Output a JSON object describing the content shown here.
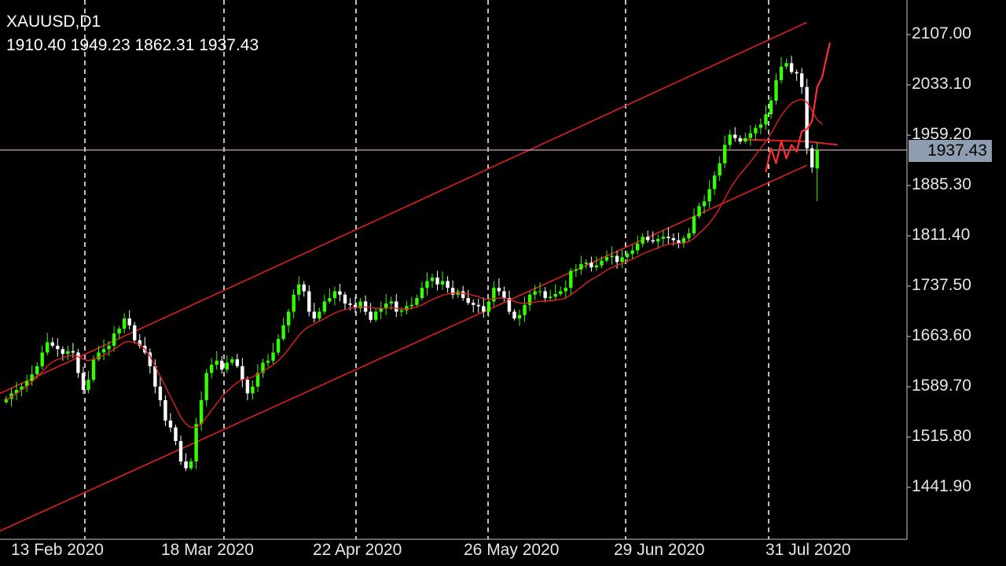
{
  "header": {
    "symbol": "XAUUSD,D1",
    "ohlc": "1910.40 1949.23 1862.31 1937.43"
  },
  "current_price_label": "1937.43",
  "colors": {
    "background": "#000000",
    "bull_candle": "#33ff00",
    "bear_candle": "#ffffff",
    "channel": "#e02020",
    "moving_average": "#e02020",
    "price_line": "#c8a8b0",
    "grid_vertical": "#ffffff",
    "axis": "#cccccc",
    "price_tag_bg": "#8f9db0",
    "forecast": "#ff3030"
  },
  "chart_data": {
    "type": "candlestick",
    "symbol": "XAUUSD",
    "timeframe": "D1",
    "y_ticks": [
      "2107.00",
      "2033.10",
      "1959.20",
      "1885.30",
      "1811.40",
      "1737.50",
      "1663.60",
      "1589.70",
      "1515.80",
      "1441.90"
    ],
    "x_ticks": [
      "13 Feb 2020",
      "18 Mar 2020",
      "22 Apr 2020",
      "26 May 2020",
      "29 Jun 2020",
      "31 Jul 2020"
    ],
    "ylim": [
      1400,
      2150
    ],
    "current_price": 1937.43,
    "last_bar": {
      "open": 1910.4,
      "high": 1949.23,
      "low": 1862.31,
      "close": 1937.43
    },
    "closes": [
      1572,
      1580,
      1585,
      1590,
      1598,
      1608,
      1620,
      1640,
      1655,
      1650,
      1645,
      1638,
      1642,
      1640,
      1610,
      1585,
      1600,
      1630,
      1640,
      1645,
      1650,
      1668,
      1675,
      1690,
      1680,
      1658,
      1650,
      1640,
      1620,
      1590,
      1570,
      1540,
      1530,
      1510,
      1480,
      1470,
      1480,
      1535,
      1570,
      1610,
      1622,
      1628,
      1615,
      1625,
      1630,
      1620,
      1600,
      1580,
      1590,
      1610,
      1625,
      1628,
      1640,
      1660,
      1680,
      1700,
      1725,
      1740,
      1730,
      1700,
      1690,
      1700,
      1715,
      1720,
      1730,
      1725,
      1712,
      1710,
      1705,
      1715,
      1700,
      1688,
      1700,
      1705,
      1712,
      1715,
      1700,
      1702,
      1708,
      1710,
      1720,
      1735,
      1745,
      1750,
      1740,
      1745,
      1735,
      1725,
      1730,
      1720,
      1713,
      1710,
      1708,
      1700,
      1715,
      1735,
      1730,
      1720,
      1700,
      1690,
      1695,
      1710,
      1725,
      1730,
      1730,
      1720,
      1722,
      1726,
      1730,
      1735,
      1760,
      1762,
      1770,
      1772,
      1765,
      1768,
      1775,
      1780,
      1782,
      1773,
      1780,
      1785,
      1790,
      1800,
      1810,
      1805,
      1803,
      1807,
      1810,
      1808,
      1805,
      1800,
      1808,
      1815,
      1840,
      1855,
      1862,
      1880,
      1900,
      1918,
      1945,
      1960,
      1955,
      1950,
      1955,
      1962,
      1970,
      1975,
      1990,
      2010,
      2040,
      2060,
      2065,
      2052,
      2050,
      2030,
      1940,
      1912,
      1937.43
    ],
    "moving_average": [
      1570,
      1575,
      1580,
      1585,
      1590,
      1597,
      1604,
      1612,
      1620,
      1626,
      1630,
      1632,
      1635,
      1636,
      1634,
      1630,
      1628,
      1630,
      1633,
      1636,
      1640,
      1645,
      1650,
      1655,
      1656,
      1655,
      1652,
      1645,
      1635,
      1620,
      1605,
      1590,
      1575,
      1560,
      1545,
      1535,
      1530,
      1530,
      1535,
      1545,
      1555,
      1565,
      1575,
      1583,
      1590,
      1596,
      1600,
      1602,
      1604,
      1608,
      1612,
      1617,
      1622,
      1628,
      1636,
      1645,
      1655,
      1665,
      1673,
      1678,
      1682,
      1686,
      1690,
      1694,
      1698,
      1701,
      1703,
      1705,
      1706,
      1707,
      1707,
      1706,
      1705,
      1705,
      1705,
      1706,
      1705,
      1704,
      1704,
      1705,
      1707,
      1710,
      1714,
      1718,
      1721,
      1724,
      1726,
      1727,
      1728,
      1727,
      1726,
      1724,
      1722,
      1719,
      1718,
      1719,
      1720,
      1720,
      1718,
      1715,
      1713,
      1712,
      1713,
      1714,
      1715,
      1716,
      1716,
      1717,
      1718,
      1720,
      1725,
      1730,
      1736,
      1742,
      1747,
      1751,
      1756,
      1761,
      1765,
      1768,
      1771,
      1774,
      1777,
      1781,
      1785,
      1788,
      1791,
      1794,
      1797,
      1799,
      1800,
      1800,
      1801,
      1803,
      1808,
      1815,
      1822,
      1830,
      1840,
      1852,
      1866,
      1880,
      1892,
      1902,
      1911,
      1920,
      1930,
      1940,
      1950,
      1962,
      1975,
      1988,
      1998,
      2006,
      2010,
      2012,
      2008,
      1995,
      1982,
      1975
    ],
    "channel_upper": [
      [
        0,
        1580
      ],
      [
        156,
        2125
      ]
    ],
    "channel_lower": [
      [
        0,
        1378
      ],
      [
        156,
        1915
      ]
    ],
    "horizontal_level": 1953,
    "forecast": [
      [
        148,
        1905
      ],
      [
        149,
        1940
      ],
      [
        150,
        1918
      ],
      [
        151,
        1950
      ],
      [
        152,
        1925
      ],
      [
        153,
        1945
      ],
      [
        154,
        1935
      ],
      [
        155,
        1965
      ],
      [
        156,
        1968
      ],
      [
        157,
        1980
      ],
      [
        158,
        2030
      ],
      [
        159,
        2045
      ],
      [
        160,
        2080
      ],
      [
        160.5,
        2095
      ]
    ]
  }
}
